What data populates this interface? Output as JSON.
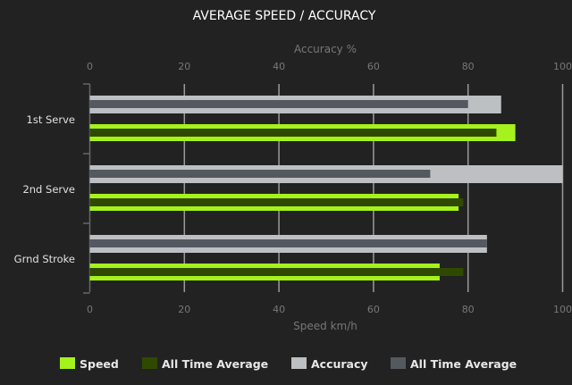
{
  "chart_data": {
    "type": "bar",
    "orientation": "horizontal",
    "title": "AVERAGE SPEED / ACCURACY",
    "categories": [
      "1st Serve",
      "2nd Serve",
      "Grnd Stroke"
    ],
    "top_axis": {
      "label": "Accuracy %",
      "range": [
        0,
        100
      ],
      "ticks": [
        "0",
        "20",
        "40",
        "60",
        "80",
        "100"
      ]
    },
    "bottom_axis": {
      "label": "Speed km/h",
      "range": [
        0,
        100
      ],
      "ticks": [
        "0",
        "20",
        "40",
        "60",
        "80",
        "100"
      ]
    },
    "grid": true,
    "legend_position": "bottom",
    "series": [
      {
        "name": "Speed",
        "axis": "bottom",
        "color": "#a6f21c",
        "values": [
          90,
          78,
          74
        ]
      },
      {
        "name": "All Time Average",
        "axis": "bottom",
        "color": "#2f4a00",
        "values": [
          86,
          79,
          79
        ]
      },
      {
        "name": "Accuracy",
        "axis": "top",
        "color": "#bdc0c3",
        "values": [
          87,
          100,
          84
        ]
      },
      {
        "name": "All Time Average",
        "axis": "top",
        "color": "#545960",
        "values": [
          80,
          72,
          84
        ]
      }
    ]
  }
}
